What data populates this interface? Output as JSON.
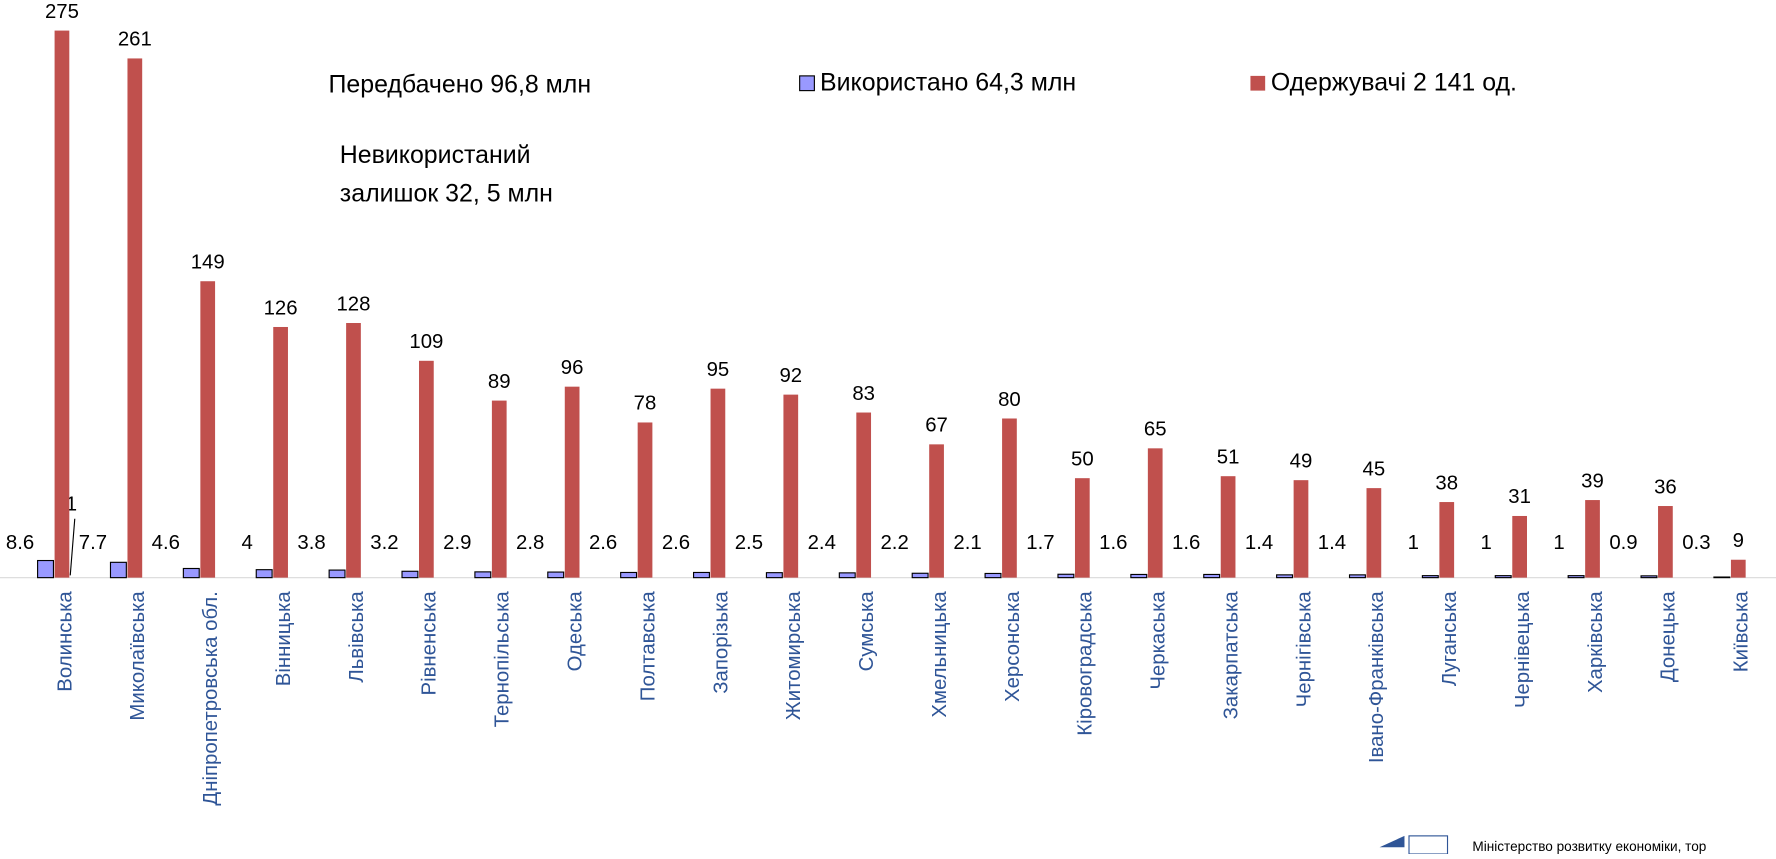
{
  "chart_data": {
    "type": "bar",
    "categories": [
      "Волинська",
      "Миколаївська",
      "Дніпропетровська обл.",
      "Вінницька",
      "Львівська",
      "Рівненська",
      "Тернопільська",
      "Одеська",
      "Полтавська",
      "Запорізька",
      "Житомирська",
      "Сумська",
      "Хмельницька",
      "Херсонська",
      "Кіровоградська",
      "Черкаська",
      "Закарпатська",
      "Чернігівська",
      "Івано-Франківська",
      "Луганська",
      "Чернівецька",
      "Харківська",
      "Донецька",
      "Київська"
    ],
    "series": [
      {
        "name": "Використано 64,3 млн",
        "color": "#9999ff",
        "values": [
          8.6,
          7.7,
          4.6,
          4,
          3.8,
          3.2,
          2.9,
          2.8,
          2.6,
          2.6,
          2.5,
          2.4,
          2.2,
          2.1,
          1.7,
          1.6,
          1.6,
          1.4,
          1.4,
          1,
          1,
          1,
          0.9,
          0.3
        ]
      },
      {
        "name": "Одержувачі 2 141 од.",
        "color": "#c0504d",
        "values": [
          275,
          261,
          149,
          126,
          128,
          109,
          89,
          96,
          78,
          95,
          92,
          83,
          67,
          80,
          50,
          65,
          51,
          49,
          45,
          38,
          31,
          39,
          36,
          9
        ]
      }
    ],
    "ylim": [
      0,
      275
    ],
    "annotations": [
      "Передбачено 96,8 млн",
      "Невикористаний",
      "залишок 32, 5 млн",
      "1"
    ],
    "footer": "Міністерство розвитку економіки, тор"
  }
}
